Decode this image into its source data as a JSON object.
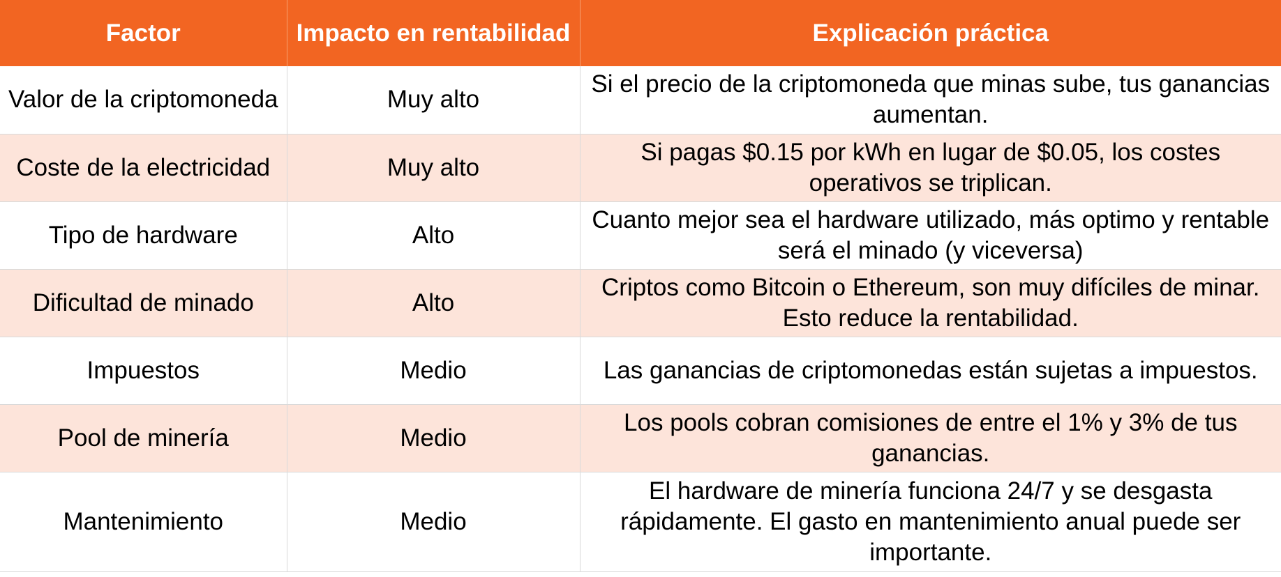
{
  "header": {
    "col1": "Factor",
    "col2": "Impacto en rentabilidad",
    "col3": "Explicación práctica"
  },
  "rows": [
    {
      "factor": "Valor de la criptomoneda",
      "impact": "Muy alto",
      "explanation": "Si el precio de la criptomoneda que minas sube, tus ganancias aumentan."
    },
    {
      "factor": "Coste de la electricidad",
      "impact": "Muy alto",
      "explanation": "Si pagas $0.15 por kWh en lugar de $0.05, los costes operativos se triplican."
    },
    {
      "factor": "Tipo de hardware",
      "impact": "Alto",
      "explanation": "Cuanto mejor sea el hardware utilizado, más optimo y rentable será el minado (y viceversa)"
    },
    {
      "factor": "Dificultad de minado",
      "impact": "Alto",
      "explanation": "Criptos como Bitcoin o Ethereum, son muy difíciles de minar. Esto reduce la rentabilidad."
    },
    {
      "factor": "Impuestos",
      "impact": "Medio",
      "explanation": "Las ganancias de criptomonedas están sujetas a impuestos."
    },
    {
      "factor": "Pool de minería",
      "impact": "Medio",
      "explanation": "Los pools cobran comisiones de entre el 1% y 3% de tus ganancias."
    },
    {
      "factor": "Mantenimiento",
      "impact": "Medio",
      "explanation": "El hardware de minería funciona 24/7 y se desgasta rápidamente. El gasto en mantenimiento anual puede ser importante."
    }
  ],
  "colors": {
    "header_bg": "#F26522",
    "header_text": "#FFFFFF",
    "row_alt_bg": "#FDE4DA",
    "row_bg": "#FFFFFF"
  }
}
